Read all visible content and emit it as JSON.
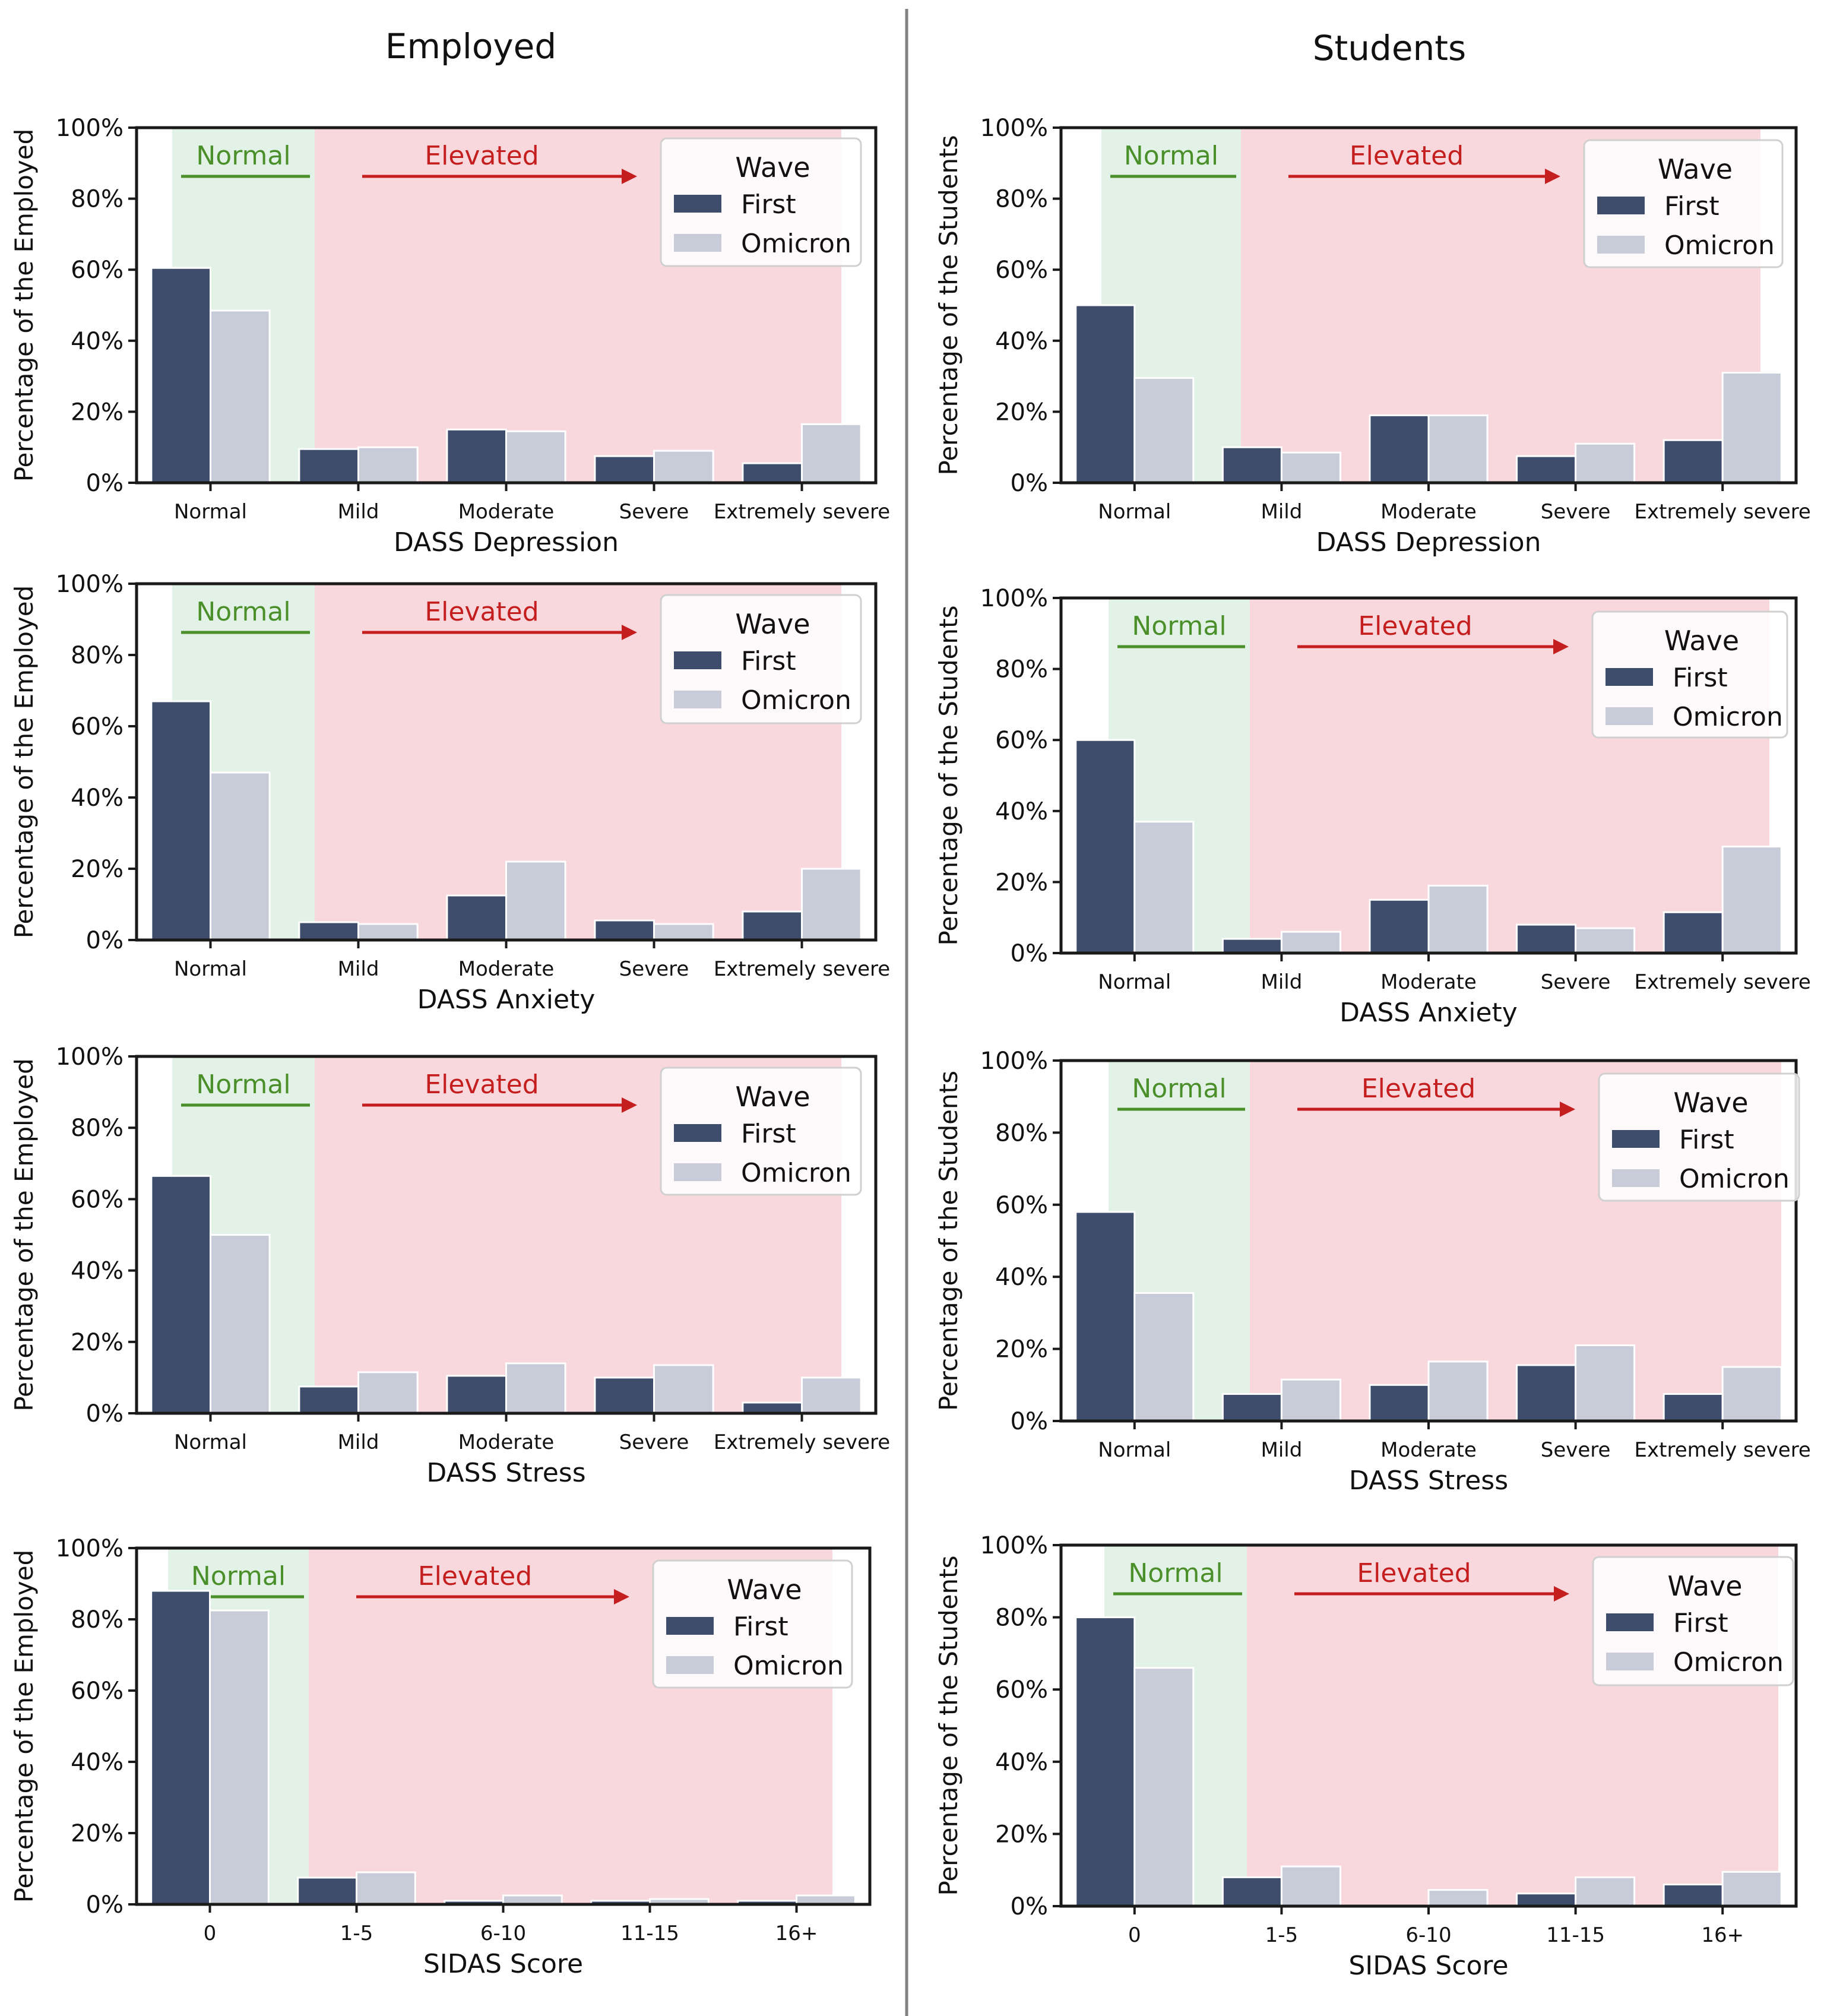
{
  "columns": [
    {
      "title": "Employed"
    },
    {
      "title": "Students"
    }
  ],
  "colors": {
    "first": "#3d4d6b",
    "omicron": "#c8ccd8",
    "normal_band": "#e3f2e6",
    "elevated_band": "#f8d7dd",
    "normal_label": "#4a8f2a",
    "elevated_label": "#c41e1e",
    "axis": "#1a1a1a"
  },
  "band_labels": {
    "normal": "Normal",
    "elevated": "Elevated"
  },
  "chart_data": [
    {
      "type": "bar",
      "column": "Employed",
      "xlabel": "DASS Depression",
      "ylabel": "Percentage of the Employed",
      "yticks": [
        "0%",
        "20%",
        "40%",
        "60%",
        "80%",
        "100%"
      ],
      "ylim": [
        0,
        100
      ],
      "categories": [
        "Normal",
        "Mild",
        "Moderate",
        "Severe",
        "Extremely severe"
      ],
      "legend": {
        "title": "Wave",
        "position": "top-right"
      },
      "series": [
        {
          "name": "First",
          "values": [
            60.5,
            9.5,
            15,
            7.5,
            5.5
          ]
        },
        {
          "name": "Omicron",
          "values": [
            48.5,
            10,
            14.5,
            9,
            16.5
          ]
        }
      ]
    },
    {
      "type": "bar",
      "column": "Students",
      "xlabel": "DASS Depression",
      "ylabel": "Percentage of the Students",
      "yticks": [
        "0%",
        "20%",
        "40%",
        "60%",
        "80%",
        "100%"
      ],
      "ylim": [
        0,
        100
      ],
      "categories": [
        "Normal",
        "Mild",
        "Moderate",
        "Severe",
        "Extremely severe"
      ],
      "legend": {
        "title": "Wave",
        "position": "top-right"
      },
      "series": [
        {
          "name": "First",
          "values": [
            50,
            10,
            19,
            7.5,
            12
          ]
        },
        {
          "name": "Omicron",
          "values": [
            29.5,
            8.5,
            19,
            11,
            31
          ]
        }
      ]
    },
    {
      "type": "bar",
      "column": "Employed",
      "xlabel": "DASS Anxiety",
      "ylabel": "Percentage of the Employed",
      "yticks": [
        "0%",
        "20%",
        "40%",
        "60%",
        "80%",
        "100%"
      ],
      "ylim": [
        0,
        100
      ],
      "categories": [
        "Normal",
        "Mild",
        "Moderate",
        "Severe",
        "Extremely severe"
      ],
      "legend": {
        "title": "Wave",
        "position": "top-right"
      },
      "series": [
        {
          "name": "First",
          "values": [
            67,
            5,
            12.5,
            5.5,
            8
          ]
        },
        {
          "name": "Omicron",
          "values": [
            47,
            4.5,
            22,
            4.5,
            20
          ]
        }
      ]
    },
    {
      "type": "bar",
      "column": "Students",
      "xlabel": "DASS Anxiety",
      "ylabel": "Percentage of the Students",
      "yticks": [
        "0%",
        "20%",
        "40%",
        "60%",
        "80%",
        "100%"
      ],
      "ylim": [
        0,
        100
      ],
      "categories": [
        "Normal",
        "Mild",
        "Moderate",
        "Severe",
        "Extremely severe"
      ],
      "legend": {
        "title": "Wave",
        "position": "top-right"
      },
      "series": [
        {
          "name": "First",
          "values": [
            60,
            4,
            15,
            8,
            11.5
          ]
        },
        {
          "name": "Omicron",
          "values": [
            37,
            6,
            19,
            7,
            30
          ]
        }
      ]
    },
    {
      "type": "bar",
      "column": "Employed",
      "xlabel": "DASS Stress",
      "ylabel": "Percentage of the Employed",
      "yticks": [
        "0%",
        "20%",
        "40%",
        "60%",
        "80%",
        "100%"
      ],
      "ylim": [
        0,
        100
      ],
      "categories": [
        "Normal",
        "Mild",
        "Moderate",
        "Severe",
        "Extremely severe"
      ],
      "legend": {
        "title": "Wave",
        "position": "top-right"
      },
      "series": [
        {
          "name": "First",
          "values": [
            66.5,
            7.5,
            10.5,
            10,
            3
          ]
        },
        {
          "name": "Omicron",
          "values": [
            50,
            11.5,
            14,
            13.5,
            10
          ]
        }
      ]
    },
    {
      "type": "bar",
      "column": "Students",
      "xlabel": "DASS Stress",
      "ylabel": "Percentage of the Students",
      "yticks": [
        "0%",
        "20%",
        "40%",
        "60%",
        "80%",
        "100%"
      ],
      "ylim": [
        0,
        100
      ],
      "categories": [
        "Normal",
        "Mild",
        "Moderate",
        "Severe",
        "Extremely severe"
      ],
      "legend": {
        "title": "Wave",
        "position": "top-right"
      },
      "series": [
        {
          "name": "First",
          "values": [
            58,
            7.5,
            10,
            15.5,
            7.5
          ]
        },
        {
          "name": "Omicron",
          "values": [
            35.5,
            11.5,
            16.5,
            21,
            15
          ]
        }
      ]
    },
    {
      "type": "bar",
      "column": "Employed",
      "xlabel": "SIDAS Score",
      "ylabel": "Percentage of the Employed",
      "yticks": [
        "0%",
        "20%",
        "40%",
        "60%",
        "80%",
        "100%"
      ],
      "ylim": [
        0,
        100
      ],
      "categories": [
        "0",
        "1-5",
        "6-10",
        "11-15",
        "16+"
      ],
      "legend": {
        "title": "Wave",
        "position": "top-right"
      },
      "series": [
        {
          "name": "First",
          "values": [
            88,
            7.5,
            1,
            1,
            1
          ]
        },
        {
          "name": "Omicron",
          "values": [
            82.5,
            9,
            2.5,
            1.5,
            2.5
          ]
        }
      ]
    },
    {
      "type": "bar",
      "column": "Students",
      "xlabel": "SIDAS Score",
      "ylabel": "Percentage of the Students",
      "yticks": [
        "0%",
        "20%",
        "40%",
        "60%",
        "80%",
        "100%"
      ],
      "ylim": [
        0,
        100
      ],
      "categories": [
        "0",
        "1-5",
        "6-10",
        "11-15",
        "16+"
      ],
      "legend": {
        "title": "Wave",
        "position": "top-right"
      },
      "series": [
        {
          "name": "First",
          "values": [
            80,
            8,
            0,
            3.5,
            6
          ]
        },
        {
          "name": "Omicron",
          "values": [
            66,
            11,
            4.5,
            8,
            9.5
          ]
        }
      ]
    }
  ]
}
